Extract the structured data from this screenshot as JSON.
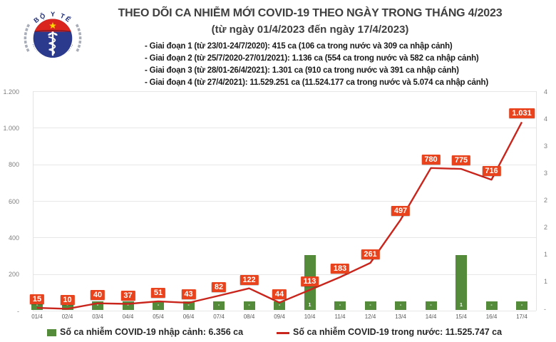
{
  "header": {
    "title": "THEO DÕI CA NHIỄM MỚI COVID-19 THEO NGÀY TRONG THÁNG 4/2023",
    "subtitle": "(từ ngày 01/4/2023 đến ngày 17/4/2023)",
    "stages": [
      "- Giai đoạn 1 (từ 23/01-24/7/2020): 415 ca (106 ca trong nước và 309 ca nhập cảnh)",
      "- Giai đoạn 2 (từ 25/7/2020-27/01/2021): 1.136 ca (554 ca trong nước và 582 ca nhập cảnh)",
      "- Giai đoạn 3 (từ 28/01-26/4/2021): 1.301 ca (910 ca trong nước và 391 ca nhập cảnh)",
      "- Giai đoạn 4 (từ 27/4/2021): 11.529.251 ca (11.524.177 ca trong nước và 5.074 ca nhập cảnh)"
    ]
  },
  "logo": {
    "top_text": "BỘ Y TẾ",
    "bottom_text": "MINISTRY OF HEALTH"
  },
  "chart_data": {
    "type": "composite-bar-line",
    "categories": [
      "01/4",
      "02/4",
      "03/4",
      "04/4",
      "05/4",
      "06/4",
      "07/4",
      "08/4",
      "09/4",
      "10/4",
      "11/4",
      "12/4",
      "13/4",
      "14/4",
      "15/4",
      "16/4",
      "17/4"
    ],
    "series": [
      {
        "name": "Số ca nhiễm COVID-19 nhập cảnh",
        "type": "bar",
        "color": "#538b3b",
        "inside_labels": [
          "-",
          "-",
          "-",
          "-",
          "-",
          "-",
          "-",
          "-",
          "-",
          "1",
          "-",
          "-",
          "-",
          "-",
          "1",
          "-",
          "-"
        ],
        "bar_height_left_axis_units": [
          47,
          47,
          47,
          47,
          47,
          47,
          47,
          47,
          47,
          300,
          47,
          47,
          47,
          47,
          300,
          47,
          47
        ]
      },
      {
        "name": "Số ca nhiễm COVID-19 trong nước",
        "type": "line",
        "color": "#c9251c",
        "values": [
          15,
          10,
          40,
          37,
          51,
          43,
          82,
          122,
          44,
          113,
          183,
          261,
          497,
          780,
          775,
          716,
          1031
        ],
        "point_labels": [
          "15",
          "10",
          "40",
          "37",
          "51",
          "43",
          "82",
          "122",
          "44",
          "113",
          "183",
          "261",
          "497",
          "780",
          "775",
          "716",
          "1.031"
        ],
        "label_bg": "#e8431c"
      }
    ],
    "left_axis": {
      "tick_labels": [
        "1.200",
        "1.000",
        "800",
        "600",
        "400",
        "200",
        "-"
      ],
      "tick_values": [
        1200,
        1000,
        800,
        600,
        400,
        200,
        0
      ],
      "max": 1200,
      "min": 0
    },
    "right_axis": {
      "visible_tick_labels": [
        "4",
        "4",
        "3",
        "3",
        "2",
        "2",
        "1",
        "1",
        "-"
      ]
    },
    "grid": true,
    "legend_position": "bottom"
  },
  "legend": {
    "items": [
      {
        "swatch": "green-square",
        "color": "#538b3b",
        "label": "Số ca nhiễm COVID-19 nhập cảnh: 6.356 ca"
      },
      {
        "swatch": "red-line",
        "color": "#c9251c",
        "label": "Số ca nhiễm COVID-19 trong nước: 11.525.747 ca"
      }
    ]
  },
  "colors": {
    "line": "#c9251c",
    "point_label_bg": "#e8431c",
    "bar": "#538b3b",
    "grid": "#e7e7e7",
    "axis_text": "#7f7f7f",
    "title_text": "#3f3f3f",
    "logo_navy": "#2c3a8e",
    "logo_red": "#d9251d",
    "logo_star": "#ffd300"
  }
}
